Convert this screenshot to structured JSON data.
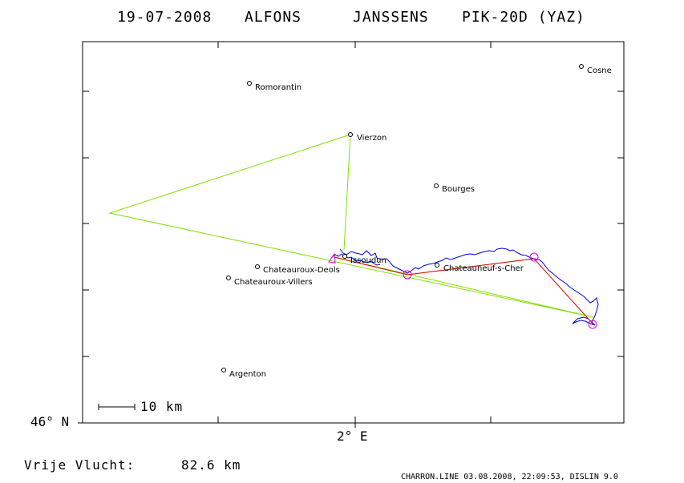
{
  "header": {
    "date": "19-07-2008",
    "first_name": "ALFONS",
    "last_name": "JANSSENS",
    "glider": "PIK-20D (YAZ)"
  },
  "axes": {
    "lat_label": "46° N",
    "lon_label": "2° E"
  },
  "scale_bar": {
    "label": "10 km"
  },
  "cities": [
    {
      "id": "romorantin",
      "name": "Romorantin"
    },
    {
      "id": "vierzon",
      "name": "Vierzon"
    },
    {
      "id": "cosne",
      "name": "Cosne"
    },
    {
      "id": "bourges",
      "name": "Bourges"
    },
    {
      "id": "issoudun",
      "name": "Issoudun"
    },
    {
      "id": "chateauroux-deols",
      "name": "Chateauroux-Deols"
    },
    {
      "id": "chateauroux-villers",
      "name": "Chateauroux-Villers"
    },
    {
      "id": "chateauneuf",
      "name": "Chateauneuf-s-Cher"
    },
    {
      "id": "argenton",
      "name": "Argenton"
    }
  ],
  "colors": {
    "task": "#80e000",
    "flight_track": "#0000e0",
    "scored_line": "#e00000",
    "turnpoint": "#e000e0",
    "frame": "#000000"
  },
  "summary": {
    "label": "Vrije Vlucht:",
    "distance": "82.6 km"
  },
  "footer": "CHARRON.LINE 03.08.2008, 22:09:53, DISLIN 9.0"
}
